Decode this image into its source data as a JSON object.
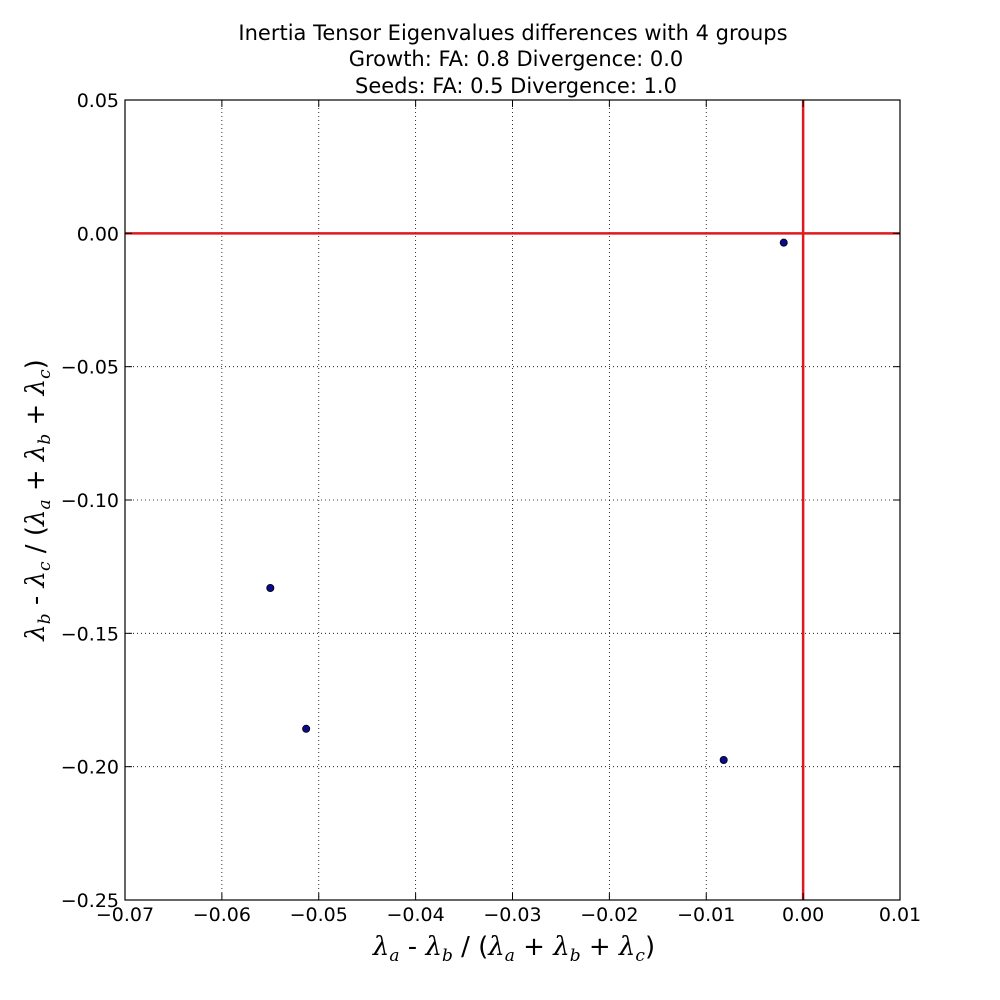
{
  "chart_data": {
    "type": "scatter",
    "title": "Inertia Tensor Eigenvalues differences with 4 groups",
    "subtitle_lines": [
      "Growth: FA: 0.8 Divergence: 0.0",
      "Seeds: FA: 0.5 Divergence: 1.0"
    ],
    "xlabel": "λa - λb / (λa + λb + λc)",
    "ylabel": "λb - λc / (λa + λb + λc)",
    "xlim": [
      -0.07,
      0.01
    ],
    "ylim": [
      -0.25,
      0.05
    ],
    "x_ticks": [
      -0.07,
      -0.06,
      -0.05,
      -0.04,
      -0.03,
      -0.02,
      -0.01,
      0.0,
      0.01
    ],
    "y_ticks": [
      -0.25,
      -0.2,
      -0.15,
      -0.1,
      -0.05,
      0.0,
      0.05
    ],
    "x_tick_labels": [
      "−0.07",
      "−0.06",
      "−0.05",
      "−0.04",
      "−0.03",
      "−0.02",
      "−0.01",
      "0.00",
      "0.01"
    ],
    "y_tick_labels": [
      "−0.25",
      "−0.20",
      "−0.15",
      "−0.10",
      "−0.05",
      "0.00",
      "0.05"
    ],
    "grid": true,
    "reference_lines": {
      "x": 0.0,
      "y": 0.0,
      "color": "#e0191e"
    },
    "points": [
      {
        "x": -0.002,
        "y": -0.0035
      },
      {
        "x": -0.055,
        "y": -0.133
      },
      {
        "x": -0.0513,
        "y": -0.1858
      },
      {
        "x": -0.0082,
        "y": -0.1975
      }
    ],
    "marker_color": "#0a0a8c"
  }
}
